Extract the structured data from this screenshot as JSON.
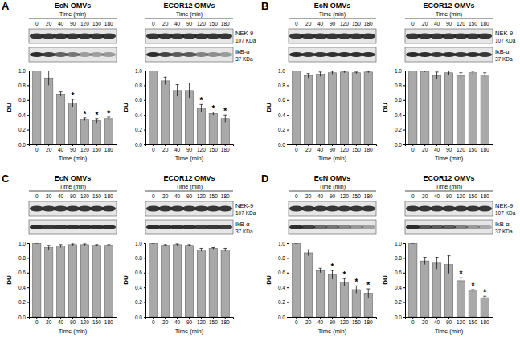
{
  "panels": [
    {
      "label": "A",
      "blot_labels": [
        {
          "name": "NEK-9",
          "size": "107 KDa"
        },
        {
          "name": "IkB-α",
          "size": "37 KDa"
        }
      ]
    },
    {
      "label": "B",
      "blot_labels": [
        {
          "name": "NEK-9",
          "size": "107 KDa"
        },
        {
          "name": "IkB-α",
          "size": "37 KDa"
        }
      ]
    },
    {
      "label": "C",
      "blot_labels": [
        {
          "name": "NEK-9",
          "size": "107 KDa"
        },
        {
          "name": "IkB-α",
          "size": "37 KDa"
        }
      ]
    },
    {
      "label": "D",
      "blot_labels": [
        {
          "name": "NEK-9",
          "size": "107 KDa"
        },
        {
          "name": "IkB-α",
          "size": "37 KDa"
        }
      ]
    }
  ],
  "chart_data": [
    {
      "type": "bar",
      "title": "EcN OMVs",
      "x_label": "Time (min)",
      "y_label": "DU",
      "categories": [
        "0",
        "20",
        "40",
        "90",
        "120",
        "150",
        "180"
      ],
      "values": [
        1.0,
        0.9,
        0.68,
        0.56,
        0.34,
        0.32,
        0.35
      ],
      "errors": [
        0,
        0.1,
        0.03,
        0.05,
        0.02,
        0.03,
        0.02
      ],
      "annotations": [
        null,
        null,
        null,
        "*",
        "*",
        "*",
        "*"
      ],
      "color": "#a9a9a9",
      "ylim": [
        0,
        1.0
      ],
      "yticks": [
        {
          "value": 0,
          "label": "0.0"
        },
        {
          "value": 0.2,
          "label": "0.2"
        },
        {
          "value": 0.4,
          "label": "0.4"
        },
        {
          "value": 0.6,
          "label": "0.6"
        },
        {
          "value": 0.8,
          "label": "0.8"
        },
        {
          "value": 1.0,
          "label": "1.0"
        }
      ]
    },
    {
      "type": "bar",
      "title": "ECOR12 OMVs",
      "x_label": "Time (min)",
      "y_label": "DU",
      "categories": [
        "0",
        "20",
        "40",
        "90",
        "120",
        "150",
        "180"
      ],
      "values": [
        1.0,
        0.86,
        0.73,
        0.73,
        0.49,
        0.42,
        0.35
      ],
      "errors": [
        0,
        0.05,
        0.08,
        0.1,
        0.05,
        0.02,
        0.05
      ],
      "annotations": [
        null,
        null,
        null,
        null,
        "*",
        "*",
        "*"
      ],
      "color": "#a9a9a9",
      "ylim": [
        0,
        1.0
      ],
      "yticks": [
        {
          "value": 0,
          "label": "0.0"
        },
        {
          "value": 0.2,
          "label": "0.2"
        },
        {
          "value": 0.4,
          "label": "0.4"
        },
        {
          "value": 0.6,
          "label": "0.6"
        },
        {
          "value": 0.8,
          "label": "0.8"
        },
        {
          "value": 1.0,
          "label": "1.0"
        }
      ]
    },
    {
      "type": "bar",
      "title": "EcN OMVs",
      "x_label": "Time (min)",
      "y_label": "DU",
      "categories": [
        "0",
        "20",
        "40",
        "90",
        "120",
        "150",
        "180"
      ],
      "values": [
        1.0,
        0.93,
        0.95,
        0.97,
        0.98,
        0.97,
        0.98
      ],
      "errors": [
        0,
        0.03,
        0.03,
        0.02,
        0.01,
        0.01,
        0.01
      ],
      "annotations": [
        null,
        null,
        null,
        null,
        null,
        null,
        null
      ],
      "color": "#a9a9a9",
      "ylim": [
        0,
        1.0
      ],
      "yticks": [
        {
          "value": 0,
          "label": "0.0"
        },
        {
          "value": 0.2,
          "label": "0.2"
        },
        {
          "value": 0.4,
          "label": "0.4"
        },
        {
          "value": 0.6,
          "label": "0.6"
        },
        {
          "value": 0.8,
          "label": "0.8"
        },
        {
          "value": 1.0,
          "label": "1.0"
        }
      ]
    },
    {
      "type": "bar",
      "title": "ECOR12 OMVs",
      "x_label": "Time (min)",
      "y_label": "DU",
      "categories": [
        "0",
        "20",
        "40",
        "90",
        "120",
        "150",
        "180"
      ],
      "values": [
        1.0,
        0.99,
        0.93,
        0.97,
        0.93,
        0.97,
        0.94
      ],
      "errors": [
        0,
        0.01,
        0.05,
        0.03,
        0.04,
        0.02,
        0.03
      ],
      "annotations": [
        null,
        null,
        null,
        null,
        null,
        null,
        null
      ],
      "color": "#a9a9a9",
      "ylim": [
        0,
        1.0
      ],
      "yticks": [
        {
          "value": 0,
          "label": "0.0"
        },
        {
          "value": 0.2,
          "label": "0.2"
        },
        {
          "value": 0.4,
          "label": "0.4"
        },
        {
          "value": 0.6,
          "label": "0.6"
        },
        {
          "value": 0.8,
          "label": "0.8"
        },
        {
          "value": 1.0,
          "label": "1.0"
        }
      ]
    },
    {
      "type": "bar",
      "title": "EcN OMVs",
      "x_label": "Time (min)",
      "y_label": "DU",
      "categories": [
        "0",
        "20",
        "40",
        "90",
        "120",
        "150",
        "180"
      ],
      "values": [
        1.0,
        0.94,
        0.96,
        0.98,
        0.98,
        0.97,
        0.97
      ],
      "errors": [
        0,
        0.03,
        0.02,
        0.01,
        0.01,
        0.01,
        0.01
      ],
      "annotations": [
        null,
        null,
        null,
        null,
        null,
        null,
        null
      ],
      "color": "#a9a9a9",
      "ylim": [
        0,
        1.0
      ],
      "yticks": [
        {
          "value": 0,
          "label": "0.0"
        },
        {
          "value": 0.2,
          "label": "0.2"
        },
        {
          "value": 0.4,
          "label": "0.4"
        },
        {
          "value": 0.6,
          "label": "0.6"
        },
        {
          "value": 0.8,
          "label": "0.8"
        },
        {
          "value": 1.0,
          "label": "1.0"
        }
      ]
    },
    {
      "type": "bar",
      "title": "ECOR12 OMVs",
      "x_label": "Time (min)",
      "y_label": "DU",
      "categories": [
        "0",
        "20",
        "40",
        "90",
        "120",
        "150",
        "180"
      ],
      "values": [
        1.0,
        0.97,
        0.98,
        0.97,
        0.91,
        0.93,
        0.91
      ],
      "errors": [
        0,
        0.01,
        0.01,
        0.01,
        0.02,
        0.01,
        0.02
      ],
      "annotations": [
        null,
        null,
        null,
        null,
        null,
        null,
        null
      ],
      "color": "#a9a9a9",
      "ylim": [
        0,
        1.0
      ],
      "yticks": [
        {
          "value": 0,
          "label": "0.0"
        },
        {
          "value": 0.2,
          "label": "0.2"
        },
        {
          "value": 0.4,
          "label": "0.4"
        },
        {
          "value": 0.6,
          "label": "0.6"
        },
        {
          "value": 0.8,
          "label": "0.8"
        },
        {
          "value": 1.0,
          "label": "1.0"
        }
      ]
    },
    {
      "type": "bar",
      "title": "EcN OMVs",
      "x_label": "Time (min)",
      "y_label": "DU",
      "categories": [
        "0",
        "20",
        "40",
        "90",
        "120",
        "150",
        "180"
      ],
      "values": [
        1.0,
        0.87,
        0.63,
        0.57,
        0.47,
        0.37,
        0.32
      ],
      "errors": [
        0,
        0.04,
        0.03,
        0.06,
        0.05,
        0.05,
        0.06
      ],
      "annotations": [
        null,
        null,
        null,
        "*",
        "*",
        "*",
        "*"
      ],
      "color": "#a9a9a9",
      "ylim": [
        0,
        1.0
      ],
      "yticks": [
        {
          "value": 0,
          "label": "0.0"
        },
        {
          "value": 0.2,
          "label": "0.2"
        },
        {
          "value": 0.4,
          "label": "0.4"
        },
        {
          "value": 0.6,
          "label": "0.6"
        },
        {
          "value": 0.8,
          "label": "0.8"
        },
        {
          "value": 1.0,
          "label": "1.0"
        }
      ]
    },
    {
      "type": "bar",
      "title": "ECOR12 OMVs",
      "x_label": "Time (min)",
      "y_label": "DU",
      "categories": [
        "0",
        "20",
        "40",
        "90",
        "120",
        "150",
        "180"
      ],
      "values": [
        1.0,
        0.76,
        0.73,
        0.71,
        0.49,
        0.35,
        0.26
      ],
      "errors": [
        0,
        0.05,
        0.08,
        0.12,
        0.04,
        0.02,
        0.02
      ],
      "annotations": [
        null,
        null,
        null,
        null,
        "*",
        "*",
        "*"
      ],
      "color": "#a9a9a9",
      "ylim": [
        0,
        1.0
      ],
      "yticks": [
        {
          "value": 0,
          "label": "0.0"
        },
        {
          "value": 0.2,
          "label": "0.2"
        },
        {
          "value": 0.4,
          "label": "0.4"
        },
        {
          "value": 0.6,
          "label": "0.6"
        },
        {
          "value": 0.8,
          "label": "0.8"
        },
        {
          "value": 1.0,
          "label": "1.0"
        }
      ]
    }
  ]
}
